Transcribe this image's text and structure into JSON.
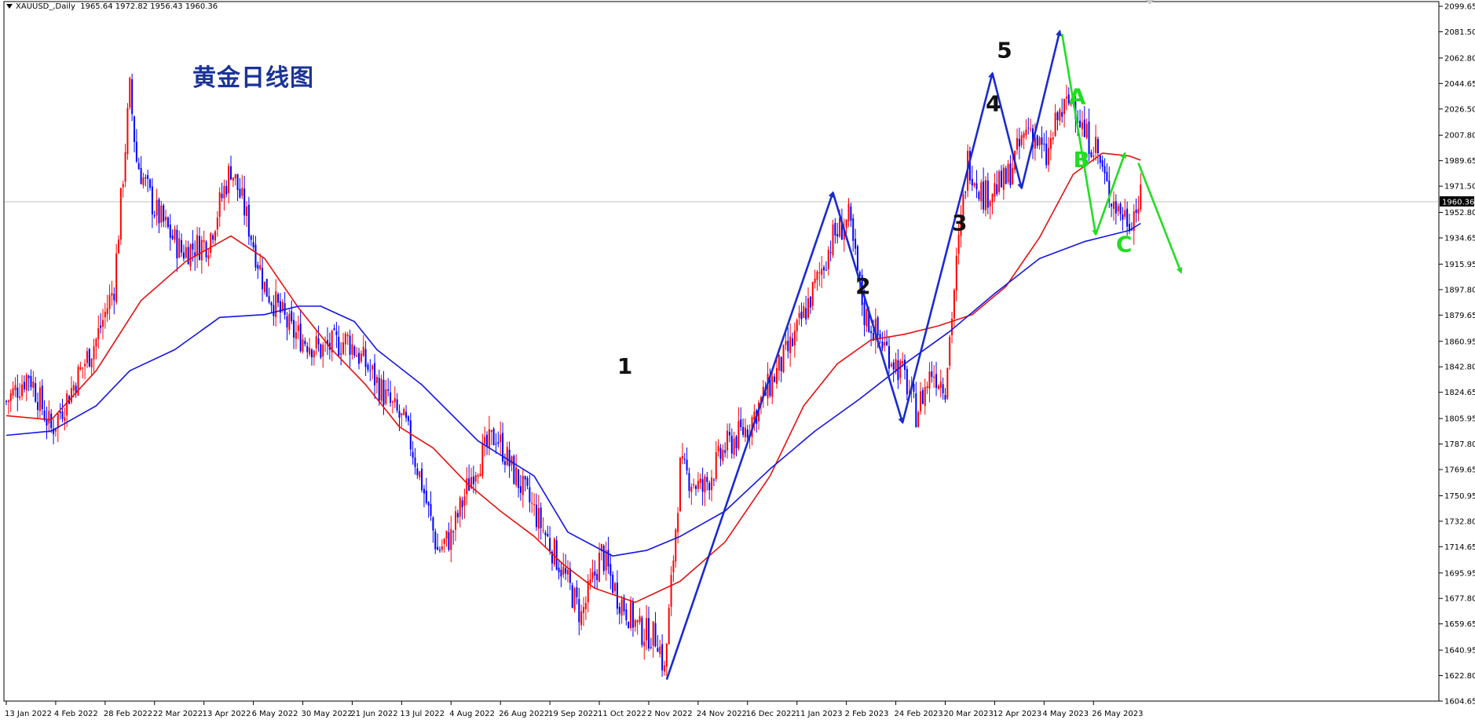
{
  "header": {
    "symbol": "XAUUSD_,Daily",
    "ohlc": "1965.64 1972.82 1956.43 1960.36"
  },
  "title_cn": "黄金日线图",
  "colors": {
    "bull": "#ff0000",
    "bear": "#0000ff",
    "ma_fast": "#e81010",
    "ma_slow": "#1414e6",
    "wave_impulse": "#1a2bd0",
    "wave_corrective": "#22dd22",
    "grid_line": "#c0c0c0",
    "axis": "#000000"
  },
  "chart_data": {
    "type": "candlestick",
    "symbol": "XAUUSD_",
    "timeframe": "Daily",
    "last_price": 1960.36,
    "ylim": [
      1604.65,
      2099.65
    ],
    "y_ticks": [
      "2099.65",
      "2081.50",
      "2062.80",
      "2044.65",
      "2026.50",
      "2007.80",
      "1989.65",
      "1971.50",
      "1952.80",
      "1934.65",
      "1915.95",
      "1897.80",
      "1879.65",
      "1860.95",
      "1842.80",
      "1824.65",
      "1805.95",
      "1787.80",
      "1769.65",
      "1750.95",
      "1732.80",
      "1714.65",
      "1695.95",
      "1677.80",
      "1659.65",
      "1640.95",
      "1622.80",
      "1604.65"
    ],
    "x_ticks": [
      "13 Jan 2022",
      "4 Feb 2022",
      "28 Feb 2022",
      "22 Mar 2022",
      "13 Apr 2022",
      "6 May 2022",
      "30 May 2022",
      "21 Jun 2022",
      "13 Jul 2022",
      "4 Aug 2022",
      "26 Aug 2022",
      "19 Sep 2022",
      "11 Oct 2022",
      "2 Nov 2022",
      "24 Nov 2022",
      "16 Dec 2022",
      "11 Jan 2023",
      "2 Feb 2023",
      "24 Feb 2023",
      "20 Mar 2023",
      "12 Apr 2023",
      "4 May 2023",
      "26 May 2023"
    ],
    "price_path": [
      [
        0,
        1818
      ],
      [
        10,
        1838
      ],
      [
        20,
        1798
      ],
      [
        30,
        1830
      ],
      [
        40,
        1862
      ],
      [
        48,
        1900
      ],
      [
        55,
        2040
      ],
      [
        58,
        1990
      ],
      [
        66,
        1955
      ],
      [
        78,
        1925
      ],
      [
        90,
        1932
      ],
      [
        100,
        1985
      ],
      [
        106,
        1955
      ],
      [
        115,
        1900
      ],
      [
        127,
        1868
      ],
      [
        140,
        1855
      ],
      [
        152,
        1862
      ],
      [
        162,
        1840
      ],
      [
        170,
        1818
      ],
      [
        178,
        1800
      ],
      [
        185,
        1760
      ],
      [
        192,
        1712
      ],
      [
        198,
        1722
      ],
      [
        208,
        1770
      ],
      [
        218,
        1795
      ],
      [
        225,
        1770
      ],
      [
        235,
        1740
      ],
      [
        247,
        1700
      ],
      [
        256,
        1665
      ],
      [
        265,
        1710
      ],
      [
        272,
        1680
      ],
      [
        282,
        1655
      ],
      [
        290,
        1650
      ],
      [
        293,
        1625
      ],
      [
        300,
        1770
      ],
      [
        310,
        1755
      ],
      [
        320,
        1785
      ],
      [
        330,
        1800
      ],
      [
        340,
        1830
      ],
      [
        350,
        1860
      ],
      [
        360,
        1900
      ],
      [
        368,
        1935
      ],
      [
        375,
        1948
      ],
      [
        382,
        1880
      ],
      [
        390,
        1860
      ],
      [
        400,
        1835
      ],
      [
        405,
        1810
      ],
      [
        412,
        1840
      ],
      [
        418,
        1830
      ],
      [
        423,
        1915
      ],
      [
        428,
        1990
      ],
      [
        435,
        1965
      ],
      [
        445,
        1975
      ],
      [
        455,
        2015
      ],
      [
        460,
        2000
      ],
      [
        463,
        1990
      ],
      [
        468,
        2020
      ],
      [
        475,
        2035
      ],
      [
        480,
        2008
      ],
      [
        485,
        2000
      ],
      [
        490,
        1970
      ],
      [
        495,
        1955
      ],
      [
        500,
        1948
      ],
      [
        505,
        1962
      ]
    ],
    "ma_fast": [
      [
        0,
        1808
      ],
      [
        20,
        1805
      ],
      [
        40,
        1840
      ],
      [
        60,
        1890
      ],
      [
        80,
        1918
      ],
      [
        100,
        1936
      ],
      [
        115,
        1920
      ],
      [
        130,
        1885
      ],
      [
        145,
        1855
      ],
      [
        160,
        1830
      ],
      [
        175,
        1800
      ],
      [
        190,
        1785
      ],
      [
        205,
        1760
      ],
      [
        220,
        1740
      ],
      [
        235,
        1722
      ],
      [
        248,
        1702
      ],
      [
        262,
        1685
      ],
      [
        280,
        1675
      ],
      [
        300,
        1690
      ],
      [
        320,
        1718
      ],
      [
        340,
        1765
      ],
      [
        355,
        1815
      ],
      [
        370,
        1845
      ],
      [
        385,
        1862
      ],
      [
        400,
        1866
      ],
      [
        415,
        1872
      ],
      [
        430,
        1880
      ],
      [
        445,
        1900
      ],
      [
        460,
        1935
      ],
      [
        475,
        1980
      ],
      [
        488,
        1995
      ],
      [
        500,
        1993
      ],
      [
        505,
        1990
      ]
    ],
    "ma_slow": [
      [
        0,
        1794
      ],
      [
        20,
        1797
      ],
      [
        40,
        1815
      ],
      [
        55,
        1840
      ],
      [
        75,
        1855
      ],
      [
        95,
        1878
      ],
      [
        115,
        1880
      ],
      [
        130,
        1886
      ],
      [
        140,
        1886
      ],
      [
        155,
        1875
      ],
      [
        165,
        1855
      ],
      [
        185,
        1830
      ],
      [
        210,
        1790
      ],
      [
        235,
        1765
      ],
      [
        250,
        1725
      ],
      [
        270,
        1708
      ],
      [
        285,
        1712
      ],
      [
        300,
        1722
      ],
      [
        320,
        1740
      ],
      [
        340,
        1770
      ],
      [
        360,
        1797
      ],
      [
        380,
        1820
      ],
      [
        400,
        1845
      ],
      [
        420,
        1868
      ],
      [
        440,
        1895
      ],
      [
        460,
        1920
      ],
      [
        480,
        1932
      ],
      [
        500,
        1940
      ],
      [
        505,
        1945
      ]
    ],
    "annotations": [
      {
        "label": "1",
        "wave": "impulse"
      },
      {
        "label": "2",
        "wave": "impulse"
      },
      {
        "label": "3",
        "wave": "impulse"
      },
      {
        "label": "4",
        "wave": "impulse"
      },
      {
        "label": "5",
        "wave": "impulse"
      },
      {
        "label": "A",
        "wave": "corrective"
      },
      {
        "label": "B",
        "wave": "corrective"
      },
      {
        "label": "C",
        "wave": "corrective"
      }
    ],
    "wave_impulse_points": [
      [
        294,
        1620
      ],
      [
        368,
        1967
      ],
      [
        399,
        1803
      ],
      [
        439,
        2052
      ],
      [
        452,
        1970
      ],
      [
        469,
        2082
      ]
    ],
    "wave_corrective_points": [
      [
        470,
        2080
      ],
      [
        485,
        1937
      ],
      [
        498,
        1995
      ]
    ],
    "wave_projection": [
      [
        504,
        1988
      ],
      [
        523,
        1910
      ]
    ]
  }
}
